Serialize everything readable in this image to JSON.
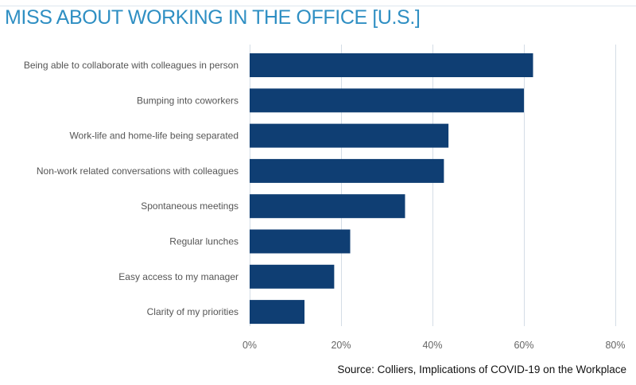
{
  "chart_data": {
    "type": "bar",
    "orientation": "horizontal",
    "title": "MISS ABOUT WORKING IN THE OFFICE [U.S.]",
    "categories": [
      "Being able to collaborate with colleagues in person",
      "Bumping into coworkers",
      "Work-life and home-life being separated",
      "Non-work related conversations with colleagues",
      "Spontaneous meetings",
      "Regular lunches",
      "Easy access to my manager",
      "Clarity of my priorities"
    ],
    "values": [
      62,
      60,
      43.5,
      42.5,
      34,
      22,
      18.5,
      12
    ],
    "xlim": [
      0,
      80
    ],
    "xticks": [
      0,
      20,
      40,
      60,
      80
    ],
    "xtick_labels": [
      "0%",
      "20%",
      "40%",
      "60%",
      "80%"
    ],
    "xlabel": "",
    "ylabel": "",
    "grid": true,
    "bar_color": "#0f3e73",
    "title_color": "#2f8fc3"
  },
  "source": "Source: Colliers, Implications of COVID-19 on the Workplace"
}
